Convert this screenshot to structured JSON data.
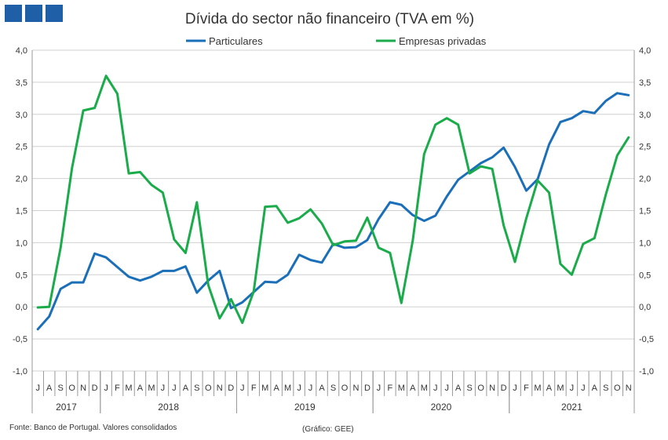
{
  "logo": {
    "blocks": 3,
    "color": "#1f5fa8"
  },
  "colors": {
    "particulares": "#1a6fb8",
    "empresas": "#1aab4a"
  },
  "chart_data": {
    "type": "line",
    "title": "Dívida do sector não financeiro (TVA em %)",
    "xlabel": "",
    "ylabel": "",
    "ylim": [
      -1.0,
      4.0
    ],
    "y_ticks": [
      "-1,0",
      "-0,5",
      "0,0",
      "0,5",
      "1,0",
      "1,5",
      "2,0",
      "2,5",
      "3,0",
      "3,5",
      "4,0"
    ],
    "y_tick_values": [
      -1.0,
      -0.5,
      0.0,
      0.5,
      1.0,
      1.5,
      2.0,
      2.5,
      3.0,
      3.5,
      4.0
    ],
    "grid": true,
    "legend_position": "top",
    "months": [
      "J",
      "A",
      "S",
      "O",
      "N",
      "D",
      "J",
      "F",
      "M",
      "A",
      "M",
      "J",
      "J",
      "A",
      "S",
      "O",
      "N",
      "D",
      "J",
      "F",
      "M",
      "A",
      "M",
      "J",
      "J",
      "A",
      "S",
      "O",
      "N",
      "D",
      "J",
      "F",
      "M",
      "A",
      "M",
      "J",
      "J",
      "A",
      "S",
      "O",
      "N",
      "D",
      "J",
      "F",
      "M",
      "A",
      "M",
      "J",
      "J",
      "A",
      "S",
      "O",
      "N"
    ],
    "years": [
      {
        "label": "2017",
        "start": 0,
        "end": 6
      },
      {
        "label": "2018",
        "start": 6,
        "end": 18
      },
      {
        "label": "2019",
        "start": 18,
        "end": 30
      },
      {
        "label": "2020",
        "start": 30,
        "end": 42
      },
      {
        "label": "2021",
        "start": 42,
        "end": 53
      }
    ],
    "series": [
      {
        "name": "Particulares",
        "values": [
          -0.35,
          -0.15,
          0.28,
          0.38,
          0.38,
          0.83,
          0.77,
          0.62,
          0.47,
          0.41,
          0.47,
          0.56,
          0.56,
          0.63,
          0.22,
          0.41,
          0.56,
          -0.02,
          0.07,
          0.23,
          0.39,
          0.38,
          0.5,
          0.81,
          0.73,
          0.69,
          0.98,
          0.92,
          0.93,
          1.04,
          1.37,
          1.63,
          1.59,
          1.43,
          1.34,
          1.42,
          1.72,
          1.98,
          2.11,
          2.24,
          2.33,
          2.48,
          2.18,
          1.81,
          1.99,
          2.53,
          2.88,
          2.94,
          3.05,
          3.02,
          3.21,
          3.33,
          3.3
        ]
      },
      {
        "name": "Empresas privadas",
        "values": [
          -0.01,
          0.0,
          0.92,
          2.16,
          3.06,
          3.1,
          3.6,
          3.32,
          2.08,
          2.1,
          1.9,
          1.78,
          1.05,
          0.84,
          1.63,
          0.34,
          -0.18,
          0.12,
          -0.25,
          0.24,
          1.56,
          1.57,
          1.31,
          1.38,
          1.52,
          1.3,
          0.96,
          1.02,
          1.03,
          1.39,
          0.92,
          0.84,
          0.06,
          1.03,
          2.38,
          2.84,
          2.94,
          2.84,
          2.08,
          2.19,
          2.15,
          1.27,
          0.7,
          1.38,
          1.97,
          1.78,
          0.67,
          0.5,
          0.98,
          1.07,
          1.75,
          2.36,
          2.64
        ]
      }
    ]
  },
  "footer": {
    "source": "Fonte: Banco de Portugal. Valores consolidados",
    "credit": "(Gráfico: GEE)"
  }
}
